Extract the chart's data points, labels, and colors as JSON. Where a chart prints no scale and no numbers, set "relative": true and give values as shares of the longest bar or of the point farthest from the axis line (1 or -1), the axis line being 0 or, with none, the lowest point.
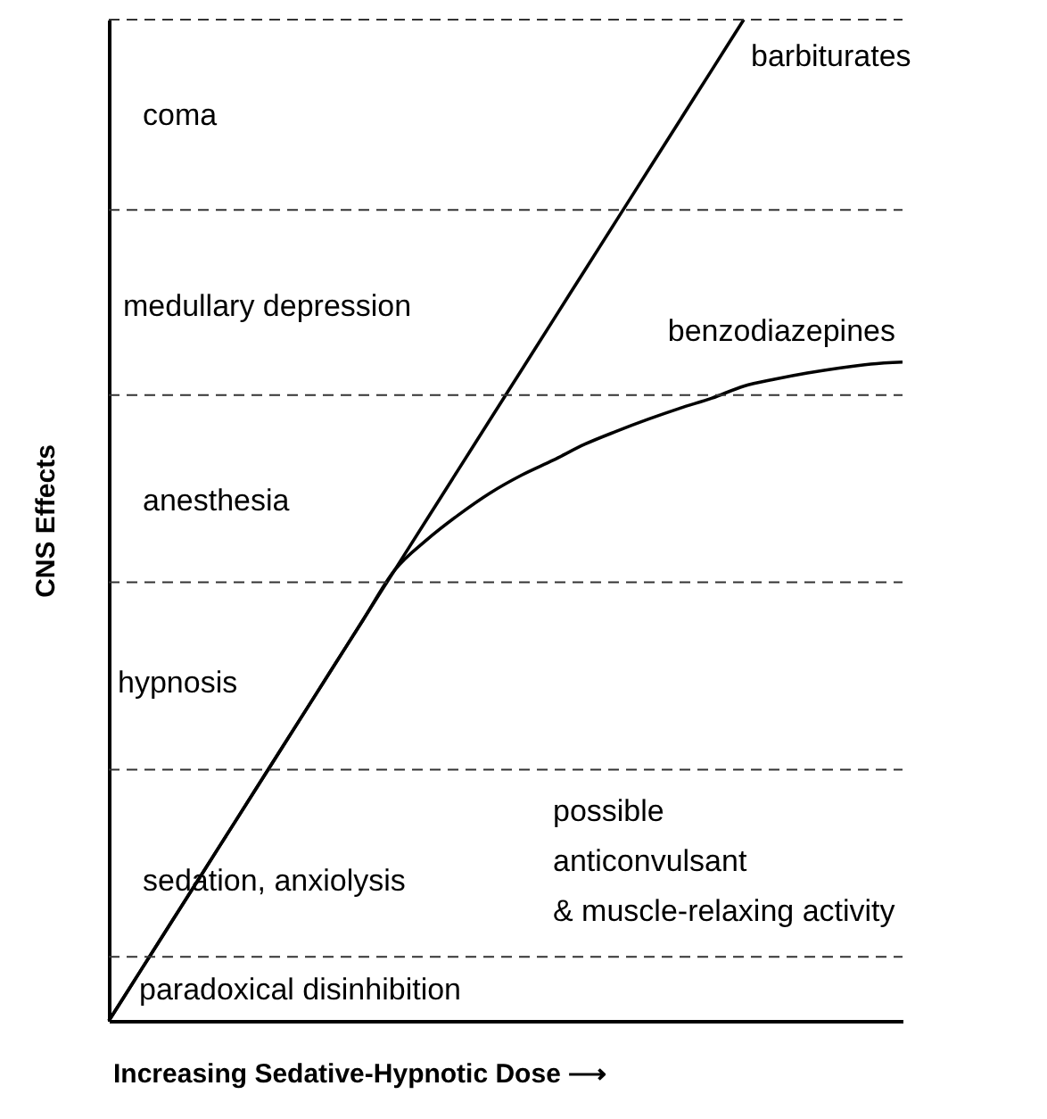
{
  "chart_data": {
    "type": "line",
    "relative": true,
    "xlabel": "Increasing Sedative-Hypnotic Dose ⟶",
    "ylabel": "CNS Effects",
    "categories": [
      null,
      null,
      null,
      null,
      null,
      null,
      null,
      null,
      null,
      null,
      null,
      null,
      null,
      null,
      null,
      null,
      null,
      null,
      null,
      null,
      null,
      null,
      null,
      null,
      null,
      null
    ],
    "series": [
      {
        "name": "barbiturates",
        "color": "#000000",
        "values": [
          0,
          0.05,
          0.1,
          0.15,
          0.2,
          0.25,
          0.3,
          0.35,
          0.4,
          0.45,
          0.5,
          0.55,
          0.6,
          0.65,
          0.7,
          0.75,
          0.8,
          0.85,
          0.9,
          0.95,
          1.0,
          null,
          null,
          null,
          null,
          null
        ]
      },
      {
        "name": "benzodiazepines",
        "color": "#000000",
        "values": [
          0,
          0.05,
          0.1,
          0.15,
          0.2,
          0.25,
          0.3,
          0.35,
          0.4,
          0.45,
          0.48,
          0.505,
          0.527,
          0.545,
          0.56,
          0.576,
          0.589,
          0.601,
          0.612,
          0.622,
          0.634,
          0.641,
          0.647,
          0.652,
          0.656,
          0.658
        ]
      }
    ],
    "ref_lines": [
      {
        "axis": "y",
        "value": 0.064,
        "line_style": "dashed"
      },
      {
        "axis": "y",
        "value": 0.251,
        "line_style": "dashed"
      },
      {
        "axis": "y",
        "value": 0.438,
        "line_style": "dashed"
      },
      {
        "axis": "y",
        "value": 0.625,
        "line_style": "dashed"
      },
      {
        "axis": "y",
        "value": 0.81,
        "line_style": "dashed"
      },
      {
        "axis": "y",
        "value": 1.0,
        "line_style": "dashed"
      }
    ],
    "annotations": [
      "coma",
      "medullary depression",
      "anesthesia",
      "hypnosis",
      "sedation, anxiolysis",
      "possible\nanticonvulsant\n& muscle-relaxing activity",
      "paradoxical disinhibition"
    ],
    "grid": false,
    "marker": "none"
  }
}
